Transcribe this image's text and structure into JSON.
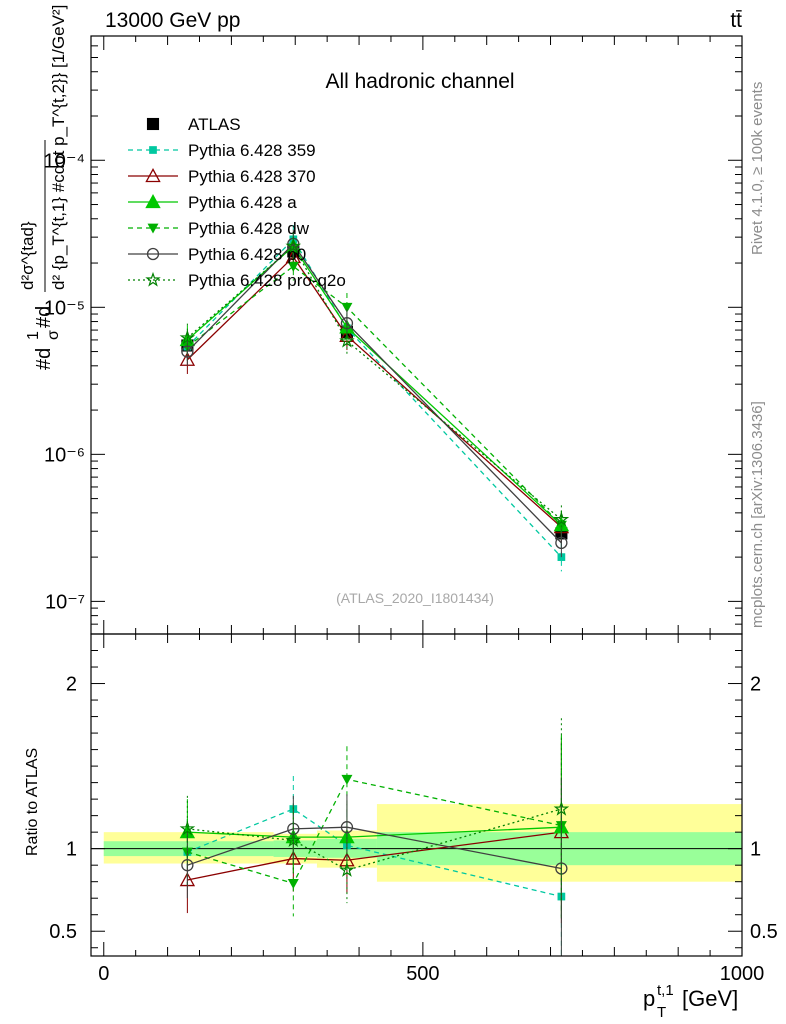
{
  "header": {
    "energy_label": "13000 GeV pp",
    "process_label": "tt̄"
  },
  "side_labels": {
    "rivet": "Rivet 4.1.0, ≥ 100k events",
    "mcplots": "mcplots.cern.ch [arXiv:1306.3436]"
  },
  "chart_data": [
    {
      "type": "line",
      "panel": "main",
      "title": "All hadronic channel",
      "watermark": "(ATLAS_2020_I1801434)",
      "ylabel": "#d^{2}#sigma^{tad} / #sigma #d^{2}{p_T^{t,1} #cdot p_T^{t,2}} [1/GeV²]",
      "ylabel_text": {
        "prefix": "#d",
        "sigma_frac_num": "1",
        "sigma_frac_den": "σ",
        "mid": "#d",
        "big_num": "d²σ^{tad}",
        "big_den": "d² {p_T^{t,1} #cdot p_T^{t,2}} [1/GeV²]"
      },
      "yscale": "log",
      "ylim": [
        6e-08,
        0.0007
      ],
      "y_ticks": [
        "10⁻⁷",
        "10⁻⁶",
        "10⁻⁵",
        "10⁻⁴"
      ],
      "x": [
        131,
        297,
        381,
        717
      ],
      "series": [
        {
          "name": "ATLAS",
          "style": "data",
          "color": "#000000",
          "values": [
            5.5e-06,
            2.4e-05,
            6.8e-06,
            2.9e-07
          ]
        },
        {
          "name": "Pythia 6.428 359",
          "style": "dashed",
          "marker": "square",
          "color": "#00c8a0",
          "values": [
            5.4e-06,
            2.9e-05,
            7.2e-06,
            2e-07
          ]
        },
        {
          "name": "Pythia 6.428 370",
          "style": "solid",
          "marker": "triangle-open",
          "color": "#8b0000",
          "values": [
            4.4e-06,
            2.2e-05,
            6.4e-06,
            3.2e-07
          ]
        },
        {
          "name": "Pythia 6.428 a",
          "style": "solid",
          "marker": "triangle",
          "color": "#00c800",
          "values": [
            6e-06,
            2.6e-05,
            7.3e-06,
            3.3e-07
          ]
        },
        {
          "name": "Pythia 6.428 dw",
          "style": "dashed",
          "marker": "triangle-down",
          "color": "#00b000",
          "values": [
            5.4e-06,
            1.9e-05,
            1e-05,
            3.3e-07
          ]
        },
        {
          "name": "Pythia 6.428 p0",
          "style": "solid",
          "marker": "circle-open",
          "color": "#404040",
          "values": [
            5e-06,
            2.7e-05,
            7.8e-06,
            2.5e-07
          ]
        },
        {
          "name": "Pythia 6.428 pro-q2o",
          "style": "dotted",
          "marker": "star",
          "color": "#008000",
          "values": [
            6.2e-06,
            2.6e-05,
            5.9e-06,
            3.6e-07
          ]
        }
      ]
    },
    {
      "type": "line",
      "panel": "ratio",
      "ylabel": "Ratio to ATLAS",
      "xlabel": "p_T^{t,1} [GeV]",
      "xlabel_text": {
        "p": "p",
        "sub": "T",
        "sup": "t,1",
        "unit": "[GeV]"
      },
      "xlim": [
        -20,
        1000
      ],
      "ylim": [
        0.35,
        2.3
      ],
      "x_ticks": [
        "0",
        "500",
        "1000"
      ],
      "y_ticks": [
        "0.5",
        "1",
        "2"
      ],
      "bands": [
        {
          "x0": 0,
          "x1": 266,
          "yellow": [
            0.91,
            1.1
          ],
          "green": [
            0.955,
            1.045
          ]
        },
        {
          "x0": 266,
          "x1": 334,
          "yellow": [
            0.91,
            1.09
          ],
          "green": [
            0.95,
            1.05
          ]
        },
        {
          "x0": 334,
          "x1": 428,
          "yellow": [
            0.885,
            1.11
          ],
          "green": [
            0.945,
            1.06
          ]
        },
        {
          "x0": 428,
          "x1": 1000,
          "yellow": [
            0.8,
            1.27
          ],
          "green": [
            0.9,
            1.1
          ]
        }
      ],
      "x": [
        131,
        297,
        381,
        717
      ],
      "series": [
        {
          "name": "Pythia 6.428 359",
          "values": [
            0.98,
            1.24,
            1.02,
            0.71
          ]
        },
        {
          "name": "Pythia 6.428 370",
          "values": [
            0.81,
            0.94,
            0.93,
            1.1
          ]
        },
        {
          "name": "Pythia 6.428 a",
          "values": [
            1.1,
            1.07,
            1.07,
            1.13
          ]
        },
        {
          "name": "Pythia 6.428 dw",
          "values": [
            0.98,
            0.79,
            1.42,
            1.14
          ]
        },
        {
          "name": "Pythia 6.428 p0",
          "values": [
            0.9,
            1.12,
            1.13,
            0.88
          ]
        },
        {
          "name": "Pythia 6.428 pro-q2o",
          "values": [
            1.12,
            1.05,
            0.87,
            1.24
          ]
        }
      ]
    }
  ]
}
